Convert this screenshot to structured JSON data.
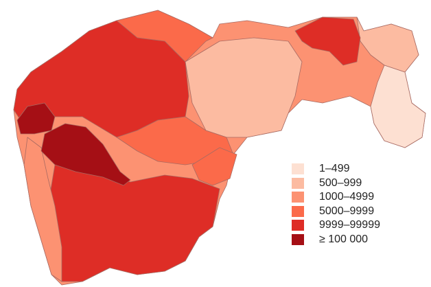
{
  "legend": {
    "items": [
      {
        "label": "1–499",
        "color": "#fde0d2"
      },
      {
        "label": "500–999",
        "color": "#fcbba1"
      },
      {
        "label": "1000–4999",
        "color": "#fc9272"
      },
      {
        "label": "5000–9999",
        "color": "#fb6a4a"
      },
      {
        "label": "9999–99999",
        "color": "#de2d26"
      },
      {
        "label": "≥ 100 000",
        "color": "#a50f15"
      }
    ]
  },
  "border_color": "#b0706a"
}
